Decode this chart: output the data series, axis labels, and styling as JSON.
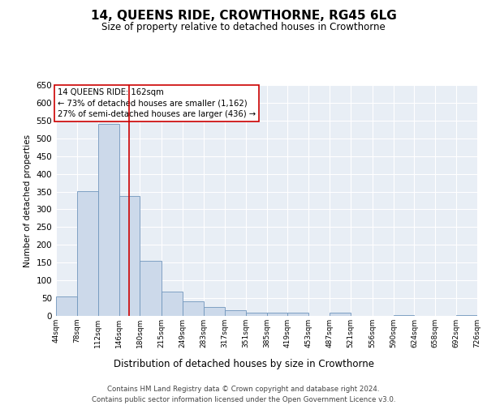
{
  "title": "14, QUEENS RIDE, CROWTHORNE, RG45 6LG",
  "subtitle": "Size of property relative to detached houses in Crowthorne",
  "xlabel": "Distribution of detached houses by size in Crowthorne",
  "ylabel": "Number of detached properties",
  "bar_color": "#ccd9ea",
  "bar_edge_color": "#7096bc",
  "background_color": "#e8eef5",
  "grid_color": "#ffffff",
  "vline_x": 162,
  "vline_color": "#cc0000",
  "annotation_text": "14 QUEENS RIDE: 162sqm\n← 73% of detached houses are smaller (1,162)\n27% of semi-detached houses are larger (436) →",
  "annotation_box_color": "#ffffff",
  "annotation_box_edge": "#cc0000",
  "footer_text": "Contains HM Land Registry data © Crown copyright and database right 2024.\nContains public sector information licensed under the Open Government Licence v3.0.",
  "bin_edges": [
    44,
    78,
    112,
    146,
    180,
    215,
    249,
    283,
    317,
    351,
    385,
    419,
    453,
    487,
    521,
    556,
    590,
    624,
    658,
    692,
    726
  ],
  "bin_labels": [
    "44sqm",
    "78sqm",
    "112sqm",
    "146sqm",
    "180sqm",
    "215sqm",
    "249sqm",
    "283sqm",
    "317sqm",
    "351sqm",
    "385sqm",
    "419sqm",
    "453sqm",
    "487sqm",
    "521sqm",
    "556sqm",
    "590sqm",
    "624sqm",
    "658sqm",
    "692sqm",
    "726sqm"
  ],
  "bar_heights": [
    55,
    352,
    540,
    338,
    155,
    68,
    40,
    25,
    16,
    10,
    8,
    8,
    0,
    8,
    0,
    0,
    3,
    0,
    0,
    3
  ],
  "ylim": [
    0,
    650
  ],
  "yticks": [
    0,
    50,
    100,
    150,
    200,
    250,
    300,
    350,
    400,
    450,
    500,
    550,
    600,
    650
  ]
}
